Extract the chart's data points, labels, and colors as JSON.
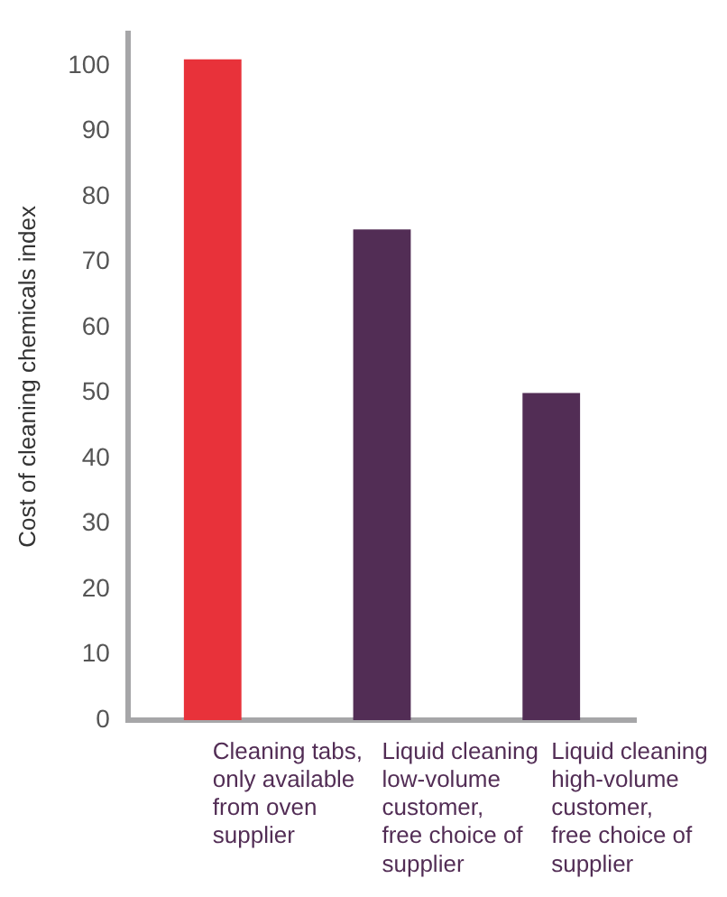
{
  "chart_data": {
    "type": "bar",
    "ylabel": "Cost of cleaning chemicals index",
    "categories": [
      "Cleaning tabs,\nonly available\nfrom oven\nsupplier",
      "Liquid cleaning\nlow-volume\ncustomer,\nfree choice of\nsupplier",
      "Liquid cleaning\nhigh-volume\ncustomer,\nfree choice of\nsupplier"
    ],
    "values": [
      101,
      75,
      50
    ],
    "colors": [
      "#e8323a",
      "#522d55",
      "#522d55"
    ],
    "ylim": [
      0,
      105
    ],
    "yticks": [
      0,
      10,
      20,
      30,
      40,
      50,
      60,
      70,
      80,
      90,
      100
    ],
    "grid": false,
    "legend": false
  }
}
